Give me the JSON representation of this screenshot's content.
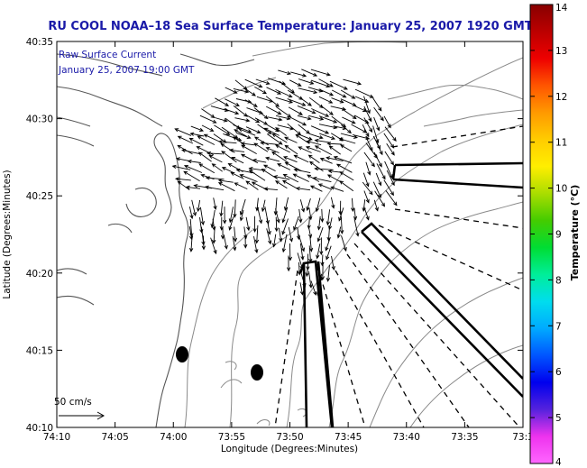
{
  "title": "RU COOL  NOAA–18  Sea Surface Temperature:  January 25, 2007 1920 GMT",
  "legend": {
    "line1": "Raw Surface Current",
    "line2": "January 25, 2007 19:00 GMT"
  },
  "scale_label": "50 cm/s",
  "axes": {
    "xlabel": "Longitude (Degrees:Minutes)",
    "ylabel": "Latitude (Degrees:Minutes)",
    "x_ticks": [
      "74:10",
      "74:05",
      "74:00",
      "73:55",
      "73:50",
      "73:45",
      "73:40",
      "73:35",
      "73:3"
    ],
    "y_ticks": [
      "40:35",
      "40:30",
      "40:25",
      "40:20",
      "40:15",
      "40:10"
    ]
  },
  "colorbar": {
    "label": "Temperature (°C)",
    "ticks": [
      "14",
      "13",
      "12",
      "11",
      "10",
      "9",
      "8",
      "7",
      "6",
      "5",
      "4"
    ],
    "min": 4,
    "max": 14,
    "colors": [
      "#ff66ff",
      "#ee33ee",
      "#5522dd",
      "#0000ee",
      "#0055ff",
      "#00aaff",
      "#00ddee",
      "#00ee99",
      "#00dd33",
      "#44cc00",
      "#aadd00",
      "#ffee00",
      "#ffcc00",
      "#ff9900",
      "#ff5500",
      "#ee0000",
      "#bb0000",
      "#880000"
    ]
  },
  "colors": {
    "title": "#1a1aa8",
    "contour": "#888888",
    "coast": "#555555"
  }
}
